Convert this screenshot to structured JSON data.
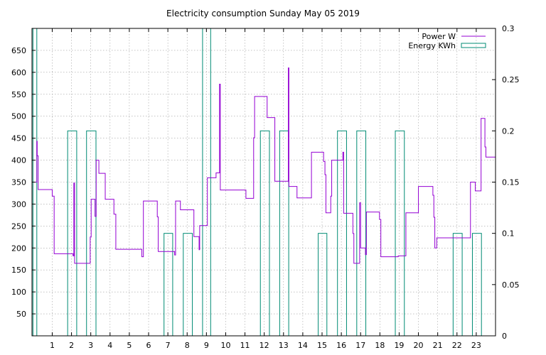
{
  "chart_data": {
    "type": "line",
    "title": "Electricity consumption Sunday May 05 2019",
    "grid": true,
    "legend_position": "top-right",
    "x": {
      "range": [
        -0.05,
        24.0
      ],
      "ticks": [
        1,
        2,
        3,
        4,
        5,
        6,
        7,
        8,
        9,
        10,
        11,
        12,
        13,
        14,
        15,
        16,
        17,
        18,
        19,
        20,
        21,
        22,
        23
      ]
    },
    "y_left": {
      "range": [
        0,
        700
      ],
      "ticks": [
        50,
        100,
        150,
        200,
        250,
        300,
        350,
        400,
        450,
        500,
        550,
        600,
        650
      ]
    },
    "y_right": {
      "range": [
        0,
        0.3
      ],
      "ticks": [
        0,
        0.05,
        0.1,
        0.15,
        0.2,
        0.25,
        0.3
      ]
    },
    "series": [
      {
        "name": "Power W",
        "axis": "left",
        "color": "#9400d3",
        "style": "step",
        "points": [
          [
            -0.05,
            350
          ],
          [
            0.17,
            350
          ],
          [
            0.2,
            443
          ],
          [
            0.22,
            410
          ],
          [
            0.27,
            333
          ],
          [
            0.95,
            333
          ],
          [
            1.0,
            318
          ],
          [
            1.1,
            187
          ],
          [
            2.05,
            187
          ],
          [
            2.08,
            182
          ],
          [
            2.12,
            348
          ],
          [
            2.16,
            165
          ],
          [
            2.9,
            165
          ],
          [
            2.97,
            225
          ],
          [
            3.02,
            311
          ],
          [
            3.18,
            311
          ],
          [
            3.22,
            272
          ],
          [
            3.28,
            400
          ],
          [
            3.42,
            370
          ],
          [
            3.7,
            370
          ],
          [
            3.75,
            311
          ],
          [
            4.15,
            311
          ],
          [
            4.2,
            277
          ],
          [
            4.3,
            197
          ],
          [
            5.6,
            197
          ],
          [
            5.65,
            180
          ],
          [
            5.73,
            307
          ],
          [
            6.4,
            307
          ],
          [
            6.45,
            271
          ],
          [
            6.5,
            192
          ],
          [
            7.3,
            192
          ],
          [
            7.35,
            184
          ],
          [
            7.4,
            307
          ],
          [
            7.6,
            307
          ],
          [
            7.65,
            287
          ],
          [
            8.3,
            287
          ],
          [
            8.35,
            226
          ],
          [
            8.62,
            196
          ],
          [
            8.65,
            251
          ],
          [
            9.0,
            251
          ],
          [
            9.05,
            360
          ],
          [
            9.45,
            360
          ],
          [
            9.5,
            371
          ],
          [
            9.68,
            573
          ],
          [
            9.72,
            332
          ],
          [
            11.0,
            332
          ],
          [
            11.05,
            313
          ],
          [
            11.4,
            313
          ],
          [
            11.45,
            451
          ],
          [
            11.5,
            545
          ],
          [
            12.1,
            545
          ],
          [
            12.15,
            497
          ],
          [
            12.5,
            497
          ],
          [
            12.55,
            352
          ],
          [
            13.2,
            352
          ],
          [
            13.25,
            610
          ],
          [
            13.28,
            340
          ],
          [
            13.65,
            340
          ],
          [
            13.7,
            314
          ],
          [
            14.4,
            314
          ],
          [
            14.45,
            418
          ],
          [
            15.05,
            418
          ],
          [
            15.08,
            397
          ],
          [
            15.15,
            367
          ],
          [
            15.2,
            280
          ],
          [
            15.4,
            280
          ],
          [
            15.45,
            318
          ],
          [
            15.5,
            400
          ],
          [
            16.05,
            400
          ],
          [
            16.08,
            418
          ],
          [
            16.12,
            279
          ],
          [
            16.55,
            279
          ],
          [
            16.6,
            233
          ],
          [
            16.65,
            165
          ],
          [
            16.92,
            165
          ],
          [
            16.95,
            303
          ],
          [
            17.0,
            200
          ],
          [
            17.2,
            200
          ],
          [
            17.25,
            185
          ],
          [
            17.3,
            282
          ],
          [
            17.95,
            282
          ],
          [
            17.98,
            265
          ],
          [
            18.05,
            180
          ],
          [
            18.9,
            180
          ],
          [
            18.95,
            182
          ],
          [
            19.3,
            182
          ],
          [
            19.35,
            280
          ],
          [
            19.95,
            280
          ],
          [
            20.0,
            340
          ],
          [
            20.7,
            340
          ],
          [
            20.75,
            320
          ],
          [
            20.8,
            270
          ],
          [
            20.85,
            200
          ],
          [
            20.95,
            223
          ],
          [
            22.6,
            223
          ],
          [
            22.7,
            350
          ],
          [
            22.9,
            350
          ],
          [
            22.95,
            330
          ],
          [
            23.2,
            330
          ],
          [
            23.25,
            495
          ],
          [
            23.4,
            495
          ],
          [
            23.45,
            430
          ],
          [
            23.5,
            407
          ],
          [
            24.0,
            407
          ]
        ]
      },
      {
        "name": "Energy KWh",
        "axis": "right",
        "color": "#008b74",
        "style": "impulse-boxes",
        "boxes": [
          [
            0.0,
            0.2,
            0.3
          ],
          [
            1.8,
            2.27,
            0.2
          ],
          [
            2.78,
            3.27,
            0.2
          ],
          [
            6.8,
            7.25,
            0.1
          ],
          [
            7.8,
            8.27,
            0.1
          ],
          [
            8.8,
            9.22,
            0.3
          ],
          [
            11.8,
            12.27,
            0.2
          ],
          [
            12.8,
            13.27,
            0.2
          ],
          [
            14.8,
            15.25,
            0.1
          ],
          [
            15.8,
            16.27,
            0.2
          ],
          [
            16.8,
            17.27,
            0.2
          ],
          [
            18.8,
            19.27,
            0.2
          ],
          [
            21.8,
            22.27,
            0.1
          ],
          [
            22.8,
            23.27,
            0.1
          ]
        ]
      }
    ]
  }
}
